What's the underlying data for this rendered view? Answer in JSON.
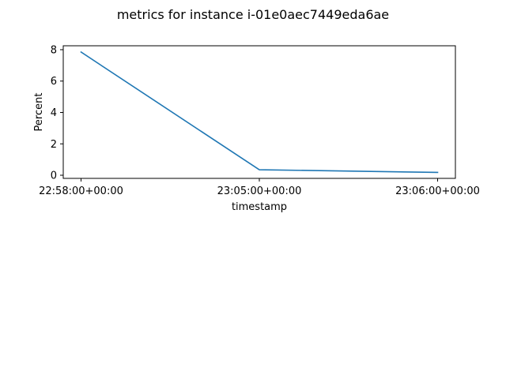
{
  "chart_data": {
    "type": "line",
    "title": "metrics for instance i-01e0aec7449eda6ae",
    "xlabel": "timestamp",
    "ylabel": "Percent",
    "categories": [
      "22:58:00+00:00",
      "23:05:00+00:00",
      "23:06:00+00:00"
    ],
    "series": [
      {
        "values": [
          7.85,
          0.35,
          0.18
        ],
        "color": "#1f77b4"
      }
    ],
    "yticks": [
      0,
      2,
      4,
      6,
      8
    ],
    "ylim": [
      -0.2,
      8.25
    ],
    "grid": false,
    "legend": "none"
  }
}
